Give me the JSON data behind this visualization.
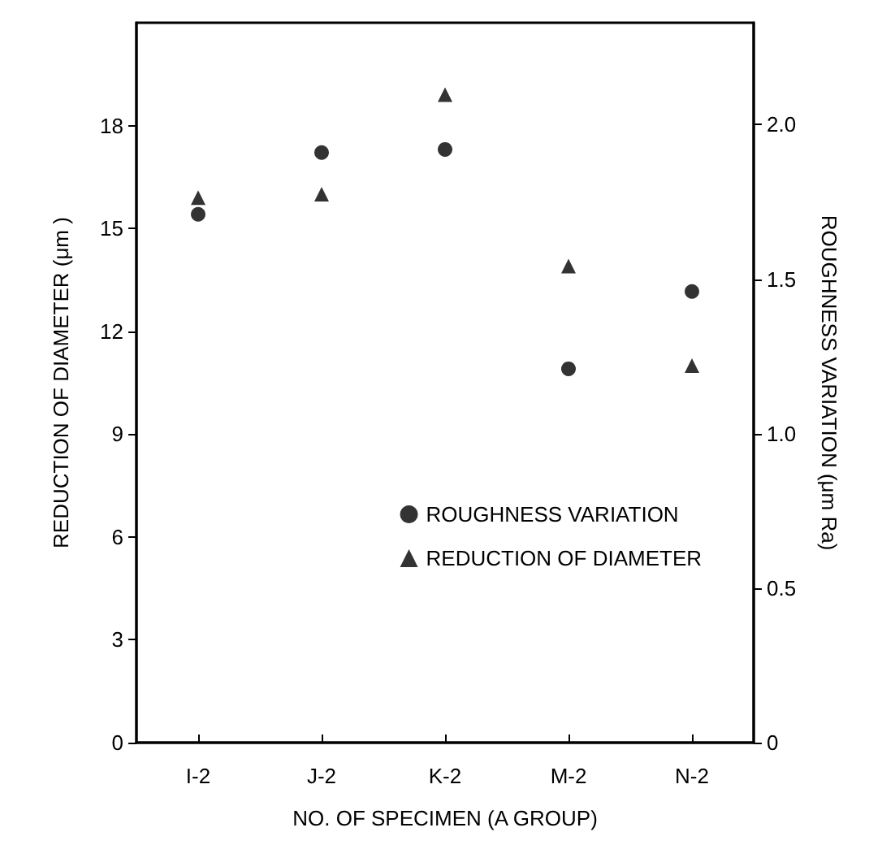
{
  "chart_data": {
    "type": "scatter",
    "categories": [
      "I-2",
      "J-2",
      "K-2",
      "M-2",
      "N-2"
    ],
    "xlabel": "NO. OF SPECIMEN (A GROUP)",
    "ylabel": "REDUCTION OF DIAMETER (μm )",
    "y2label": "ROUGHNESS VARIATION (μm Ra)",
    "ylim": [
      0,
      21
    ],
    "yticks": [
      0,
      3,
      6,
      9,
      12,
      15,
      18
    ],
    "y2lim": [
      0,
      2.33
    ],
    "y2ticks": [
      0,
      0.5,
      {
        "value": 1,
        "label": "1.0"
      },
      1.5,
      {
        "value": 2,
        "label": "2.0"
      }
    ],
    "series": [
      {
        "name": "ROUGHNESS VARIATION",
        "color": "#000000",
        "marker": "circle",
        "axis": "y2",
        "values": [
          1.71,
          1.91,
          1.92,
          1.21,
          1.46
        ]
      },
      {
        "name": "REDUCTION OF DIAMETER",
        "color": "#000000",
        "marker": "triangle",
        "axis": "y",
        "values": [
          15.9,
          16.0,
          18.9,
          13.9,
          11.0
        ]
      }
    ],
    "grid": false,
    "legend": "right"
  }
}
